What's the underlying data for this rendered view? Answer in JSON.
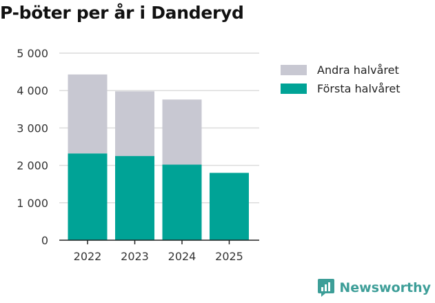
{
  "chart_data": {
    "type": "bar",
    "stacked": true,
    "title": "P-böter per år i Danderyd",
    "categories": [
      "2022",
      "2023",
      "2024",
      "2025"
    ],
    "series": [
      {
        "name": "Första halvåret",
        "color": "#00a396",
        "values": [
          2320,
          2250,
          2020,
          1800
        ]
      },
      {
        "name": "Andra halvåret",
        "color": "#c8c8d2",
        "values": [
          2110,
          1730,
          1740,
          0
        ]
      }
    ],
    "legend": [
      "Andra halvåret",
      "Första halvåret"
    ],
    "ylim": [
      0,
      5000
    ],
    "yticks": [
      0,
      1000,
      2000,
      3000,
      4000,
      5000
    ],
    "ytick_labels": [
      "0",
      "1 000",
      "2 000",
      "3 000",
      "4 000",
      "5 000"
    ],
    "grid": true,
    "legend_position": "top-right"
  },
  "brand": {
    "name": "Newsworthy",
    "color": "#3d9e98"
  }
}
